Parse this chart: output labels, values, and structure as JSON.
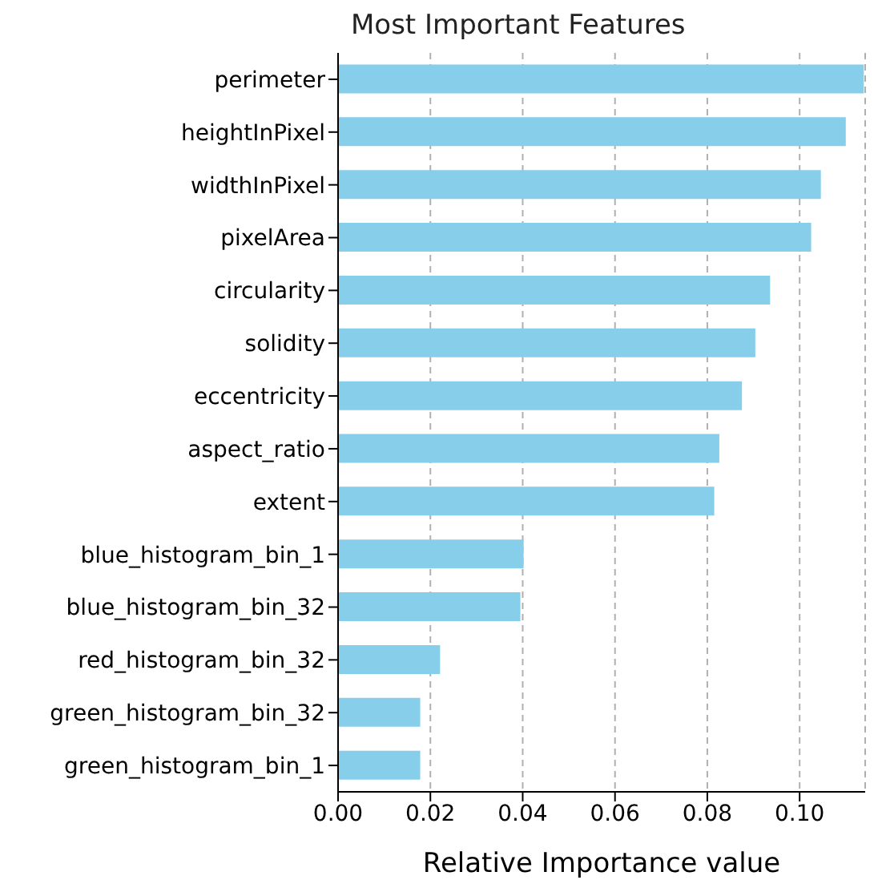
{
  "chart_data": {
    "type": "bar",
    "orientation": "horizontal",
    "title": "Most Important Features",
    "xlabel": "Relative Importance value",
    "categories": [
      "perimeter",
      "heightInPixel",
      "widthInPixel",
      "pixelArea",
      "circularity",
      "solidity",
      "eccentricity",
      "aspect_ratio",
      "extent",
      "blue_histogram_bin_1",
      "blue_histogram_bin_32",
      "red_histogram_bin_32",
      "green_histogram_bin_32",
      "green_histogram_bin_1"
    ],
    "values": [
      0.1139,
      0.11,
      0.1046,
      0.1025,
      0.0936,
      0.0904,
      0.0875,
      0.0826,
      0.0815,
      0.0402,
      0.0395,
      0.0221,
      0.0178,
      0.0178
    ],
    "color": "#87ceeb",
    "xlim": [
      0,
      0.1142
    ],
    "xticks": [
      {
        "value": 0,
        "label": "0.00"
      },
      {
        "value": 0.02,
        "label": "0.02"
      },
      {
        "value": 0.04,
        "label": "0.04"
      },
      {
        "value": 0.06,
        "label": "0.06"
      },
      {
        "value": 0.08,
        "label": "0.08"
      },
      {
        "value": 0.1,
        "label": "0.10"
      }
    ],
    "grid": "x"
  }
}
